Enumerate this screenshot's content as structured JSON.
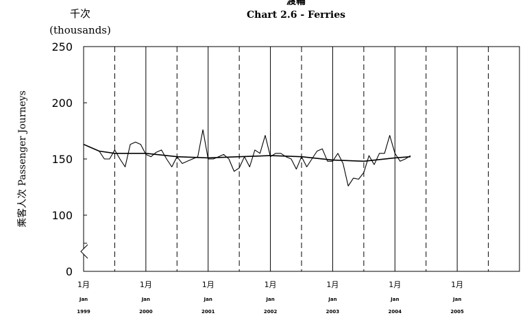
{
  "header": {
    "title_cn": "渡輪",
    "title_en": "Chart 2.6 -  Ferries",
    "unit_cn": "千次",
    "unit_en": "(thousands)"
  },
  "chart_data": {
    "type": "line",
    "title": "Chart 2.6 -  Ferries",
    "ylabel": "乘客人次  Passenger Journeys",
    "yunit": "(thousands)",
    "ylim": [
      0,
      250
    ],
    "yticks": [
      0,
      50,
      100,
      150,
      200,
      250
    ],
    "ytick_labels": [
      "0",
      "",
      "100",
      "150",
      "200",
      "250"
    ],
    "y_axis_break": true,
    "xlim": [
      "1999-01",
      "2006-01"
    ],
    "x_ticks": [
      {
        "month": "1月",
        "jan": "Jan",
        "year": "1999"
      },
      {
        "month": "1月",
        "jan": "Jan",
        "year": "2000"
      },
      {
        "month": "1月",
        "jan": "Jan",
        "year": "2001"
      },
      {
        "month": "1月",
        "jan": "Jan",
        "year": "2002"
      },
      {
        "month": "1月",
        "jan": "Jan",
        "year": "2003"
      },
      {
        "month": "1月",
        "jan": "Jan",
        "year": "2004"
      },
      {
        "month": "1月",
        "jan": "Jan",
        "year": "2005"
      }
    ],
    "grid": "solid vertical lines at January, dashed vertical lines at July",
    "series": [
      {
        "kind": "monthly",
        "color": "#000000",
        "values": [
          {
            "x": "1999-01",
            "y": 163
          },
          {
            "x": "1999-02",
            "y": 161
          },
          {
            "x": "1999-03",
            "y": 159
          },
          {
            "x": "1999-04",
            "y": 157
          },
          {
            "x": "1999-05",
            "y": 150
          },
          {
            "x": "1999-06",
            "y": 150
          },
          {
            "x": "1999-07",
            "y": 158
          },
          {
            "x": "1999-08",
            "y": 150
          },
          {
            "x": "1999-09",
            "y": 143
          },
          {
            "x": "1999-10",
            "y": 163
          },
          {
            "x": "1999-11",
            "y": 165
          },
          {
            "x": "1999-12",
            "y": 163
          },
          {
            "x": "2000-01",
            "y": 154
          },
          {
            "x": "2000-02",
            "y": 152
          },
          {
            "x": "2000-03",
            "y": 156
          },
          {
            "x": "2000-04",
            "y": 158
          },
          {
            "x": "2000-05",
            "y": 150
          },
          {
            "x": "2000-06",
            "y": 143
          },
          {
            "x": "2000-07",
            "y": 152
          },
          {
            "x": "2000-08",
            "y": 146
          },
          {
            "x": "2000-09",
            "y": 148
          },
          {
            "x": "2000-10",
            "y": 150
          },
          {
            "x": "2000-11",
            "y": 152
          },
          {
            "x": "2000-12",
            "y": 176
          },
          {
            "x": "2001-01",
            "y": 150
          },
          {
            "x": "2001-02",
            "y": 150
          },
          {
            "x": "2001-03",
            "y": 152
          },
          {
            "x": "2001-04",
            "y": 154
          },
          {
            "x": "2001-05",
            "y": 150
          },
          {
            "x": "2001-06",
            "y": 139
          },
          {
            "x": "2001-07",
            "y": 142
          },
          {
            "x": "2001-08",
            "y": 152
          },
          {
            "x": "2001-09",
            "y": 143
          },
          {
            "x": "2001-10",
            "y": 158
          },
          {
            "x": "2001-11",
            "y": 155
          },
          {
            "x": "2001-12",
            "y": 171
          },
          {
            "x": "2002-01",
            "y": 152
          },
          {
            "x": "2002-02",
            "y": 155
          },
          {
            "x": "2002-03",
            "y": 155
          },
          {
            "x": "2002-04",
            "y": 152
          },
          {
            "x": "2002-05",
            "y": 150
          },
          {
            "x": "2002-06",
            "y": 141
          },
          {
            "x": "2002-07",
            "y": 152
          },
          {
            "x": "2002-08",
            "y": 143
          },
          {
            "x": "2002-09",
            "y": 150
          },
          {
            "x": "2002-10",
            "y": 157
          },
          {
            "x": "2002-11",
            "y": 159
          },
          {
            "x": "2002-12",
            "y": 148
          },
          {
            "x": "2003-01",
            "y": 148
          },
          {
            "x": "2003-02",
            "y": 155
          },
          {
            "x": "2003-03",
            "y": 146
          },
          {
            "x": "2003-04",
            "y": 126
          },
          {
            "x": "2003-05",
            "y": 133
          },
          {
            "x": "2003-06",
            "y": 132
          },
          {
            "x": "2003-07",
            "y": 138
          },
          {
            "x": "2003-08",
            "y": 153
          },
          {
            "x": "2003-09",
            "y": 145
          },
          {
            "x": "2003-10",
            "y": 155
          },
          {
            "x": "2003-11",
            "y": 155
          },
          {
            "x": "2003-12",
            "y": 171
          },
          {
            "x": "2004-01",
            "y": 155
          },
          {
            "x": "2004-02",
            "y": 148
          },
          {
            "x": "2004-03",
            "y": 150
          },
          {
            "x": "2004-04",
            "y": 153
          }
        ]
      },
      {
        "kind": "trend",
        "color": "#000000",
        "values": [
          {
            "x": "1999-01",
            "y": 163
          },
          {
            "x": "1999-04",
            "y": 157
          },
          {
            "x": "1999-07",
            "y": 155
          },
          {
            "x": "2000-01",
            "y": 155
          },
          {
            "x": "2000-07",
            "y": 152
          },
          {
            "x": "2001-01",
            "y": 151
          },
          {
            "x": "2001-07",
            "y": 152
          },
          {
            "x": "2002-01",
            "y": 153
          },
          {
            "x": "2002-07",
            "y": 152
          },
          {
            "x": "2003-01",
            "y": 149
          },
          {
            "x": "2003-07",
            "y": 148
          },
          {
            "x": "2004-01",
            "y": 151
          },
          {
            "x": "2004-04",
            "y": 152
          }
        ]
      }
    ]
  }
}
